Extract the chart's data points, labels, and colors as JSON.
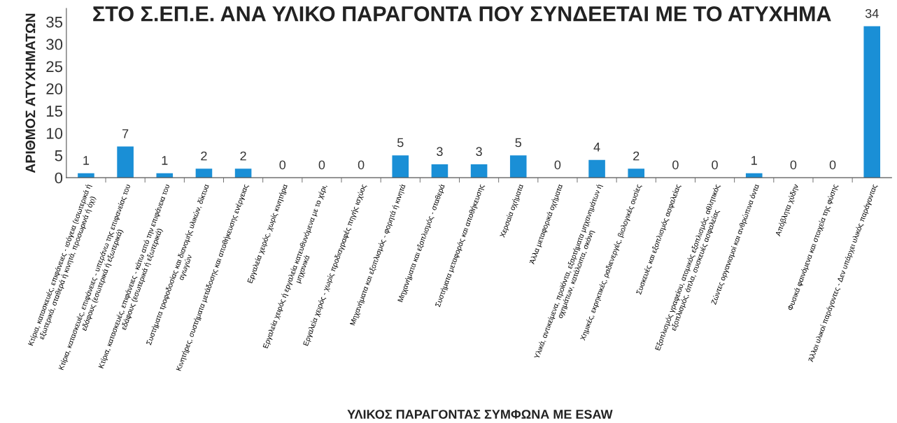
{
  "chart_data": {
    "type": "bar",
    "title": "ΣΤΟ Σ.ΕΠ.Ε. ΑΝΑ ΥΛΙΚΟ ΠΑΡΑΓΟΝΤΑ ΠΟΥ ΣΥΝΔΕΕΤΑΙ ΜΕ ΤΟ ΑΤΥΧΗΜΑ",
    "xlabel": "ΥΛΙΚΟΣ ΠΑΡΑΓΟΝΤΑΣ ΣΥΜΦΩΝΑ ΜΕ ESAW",
    "ylabel": "ΑΡΙΘΜΟΣ ΑΤΥΧΗΜΑΤΩΝ",
    "categories": [
      "Κτίρια, κατασκευές, επιφάνειες - ισόγεια (εσωτερικά ή\nεξωτερικά, σταθερά ή κινητά, προσωρινά ή όχι)",
      "Κτίρια, κατασκευές, επιφάνειες - υπεράνω της επιφανείας του\nεδάφους (εσωτερικά ή εξωτερικά)",
      "Κτίρια, κατασκευές, επιφάνειες - κάτω από την επιφάνεια του\nεδάφους (εσωτερικά ή εξωτερικά)",
      "Συστήματα τροφοδοσίας και διανομής υλικών, δίκτυα\nαγωγών",
      "Κινητήρες, συστήματα μετάδοσης και αποθήκευσης ενέργειας",
      "Εργαλεία χειρός, χωρίς κινητήρα",
      "Εργαλεία χειρός ή εργαλεία κατευθυνόμενα με το χέρι,\nμηχανικά",
      "Εργαλεία χειρός - χωρίς προδιαγραφές πηγής ισχύος",
      "Μηχανήματα και εξοπλισμός - φορητά ή κινητά",
      "Μηχανήματα και εξοπλισμός - σταθερά",
      "Συστήματα μεταφοράς και αποθήκευσης",
      "Χερσαία οχήματα",
      "Άλλα μεταφορικά οχήματα",
      "Υλικά, αντικείμενα, προϊόντα, εξαρτήματα μηχανημάτων ή\nοχημάτων, κατάλοιπα, σκόνη",
      "Χημικές, εκρηκτικές, ραδιενεργές, βιολογικές ουσίες",
      "Συσκευές και εξοπλισμός ασφαλείας",
      "Εξοπλισμός γραφείου, ατομικός εξοπλισμός, αθλητικός\nεξοπλισμός, όπλα, συσκευές ασφαλείας",
      "Ζώντες οργανισμοί και ανθρώπινα όντα",
      "Απόβλητα χύδην",
      "Φυσικά φαινόμενα και στοιχεία της φύσης",
      "Άλλοι υλικοί παράγοντες - Δεν υπάρχει υλικός παράγοντας"
    ],
    "values": [
      1,
      7,
      1,
      2,
      2,
      0,
      0,
      0,
      5,
      3,
      3,
      5,
      0,
      4,
      2,
      0,
      0,
      1,
      0,
      0,
      34
    ],
    "color": "#1a8fd6",
    "ylim": [
      0,
      38
    ],
    "yticks": [
      0,
      5,
      10,
      15,
      20,
      25,
      30,
      35
    ],
    "grid": false,
    "data_labels": true,
    "legend": false
  }
}
